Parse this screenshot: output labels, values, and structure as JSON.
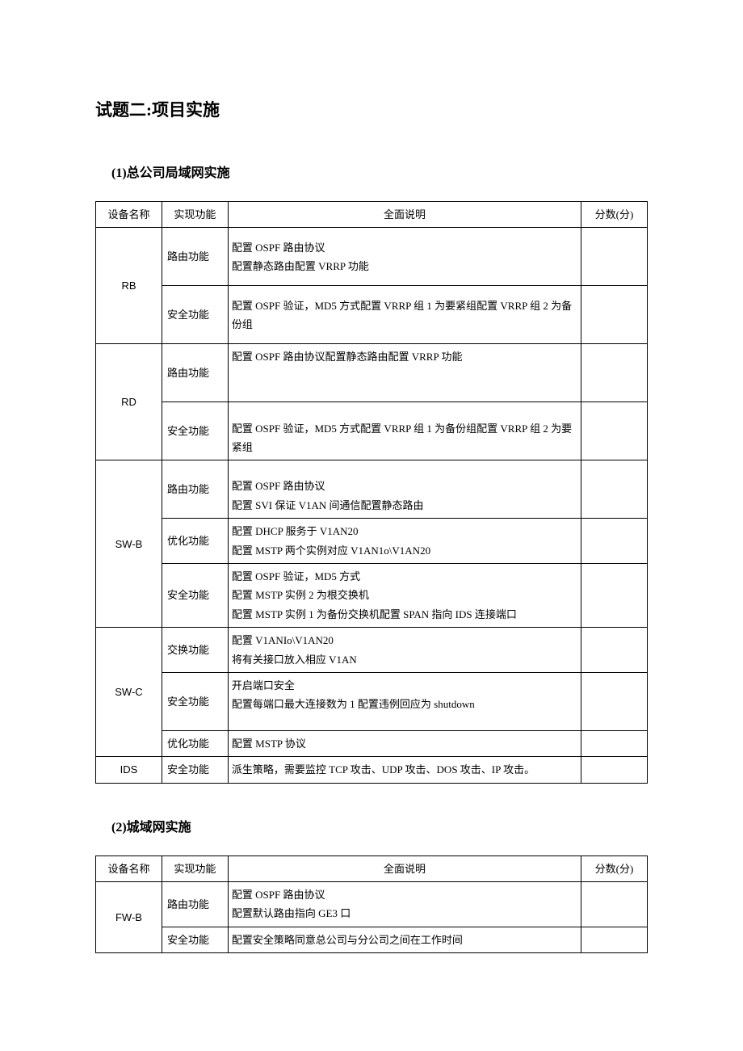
{
  "page": {
    "title": "试题二:项目实施",
    "section1": {
      "num": "(1)",
      "title": "总公司局域网实施"
    },
    "section2": {
      "num": "(2)",
      "title": "城域网实施"
    }
  },
  "headers": {
    "device": "设备名称",
    "func": "实现功能",
    "desc": "全面说明",
    "score": "分数(分)"
  },
  "table1": {
    "rb": {
      "name": "RB",
      "r1_func": "路由功能",
      "r1_desc": "配置 OSPF 路由协议\n配置静态路由配置 VRRP 功能",
      "r2_func": "安全功能",
      "r2_desc": "配置 OSPF 验证，MD5 方式配置 VRRP 组 1 为要紧组配置 VRRP 组 2 为备份组"
    },
    "rd": {
      "name": "RD",
      "r1_func": "路由功能",
      "r1_desc": "配置 OSPF 路由协议配置静态路由配置 VRRP 功能",
      "r2_func": "安全功能",
      "r2_desc": "配置 OSPF 验证，MD5 方式配置 VRRP 组 1 为备份组配置 VRRP 组 2 为要紧组"
    },
    "swb": {
      "name": "SW-B",
      "r1_func": "路由功能",
      "r1_desc": "配置 OSPF 路由协议\n配置 SVI 保证 V1AN 间通信配置静态路由",
      "r2_func": "优化功能",
      "r2_desc": "配置 DHCP 服务于 V1AN20\n配置 MSTP 两个实例对应 V1AN1o\\V1AN20",
      "r3_func": "安全功能",
      "r3_desc": "配置 OSPF 验证，MD5 方式\n配置 MSTP 实例 2 为根交换机\n配置 MSTP 实例 1 为备份交换机配置 SPAN 指向 IDS 连接端口"
    },
    "swc": {
      "name": "SW-C",
      "r1_func": "交换功能",
      "r1_desc": "配置 V1ANIo\\V1AN20\n将有关接口放入相应 V1AN",
      "r2_func": "安全功能",
      "r2_desc": "开启端口安全\n配置每端口最大连接数为 1 配置违例回应为 shutdown",
      "r3_func": "优化功能",
      "r3_desc": "配置 MSTP 协议"
    },
    "ids": {
      "name": "IDS",
      "func": "安全功能",
      "desc": "派生策略，需要监控 TCP 攻击、UDP 攻击、DOS 攻击、IP 攻击。"
    }
  },
  "table2": {
    "fwb": {
      "name": "FW-B",
      "r1_func": "路由功能",
      "r1_desc": "配置 OSPF 路由协议\n配置默认路由指向 GE3 口",
      "r2_func": "安全功能",
      "r2_desc": "配置安全策略同意总公司与分公司之间在工作时间"
    }
  },
  "style": {
    "font_size_title": 21,
    "font_size_subtitle": 16,
    "font_size_table": 13,
    "border_color": "#000000",
    "background_color": "#ffffff",
    "text_color": "#000000"
  }
}
